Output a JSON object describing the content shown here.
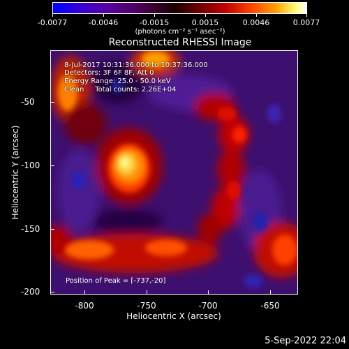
{
  "colorbar": {
    "labels": [
      "-0.0077",
      "-0.0046",
      "-0.0015",
      "0.0015",
      "0.0046",
      "0.0077"
    ],
    "units": "(photons cm⁻² s⁻¹ asec⁻²)"
  },
  "title": "Reconstructed RHESSI Image",
  "info": {
    "time": "8-Jul-2017 10:31:36.000 to 10:37:36.000",
    "detectors": "Detectors: 3F 6F 8F, Att 0",
    "energy": "Energy Range: 25.0 - 50.0 keV",
    "clean": "Clean     Total counts: 2.26E+04"
  },
  "peak_text": "Position of Peak = [-737,-20]",
  "axes": {
    "x_title": "Heliocentric X (arcsec)",
    "y_title": "Heliocentric Y (arcsec)",
    "x_ticks": [
      "-800",
      "-750",
      "-700",
      "-650"
    ],
    "y_ticks": [
      "-50",
      "-100",
      "-150",
      "-200"
    ]
  },
  "footer_date": "5-Sep-2022 22:04",
  "colors": {
    "background": "#000000",
    "foreground": "#ffffff"
  }
}
